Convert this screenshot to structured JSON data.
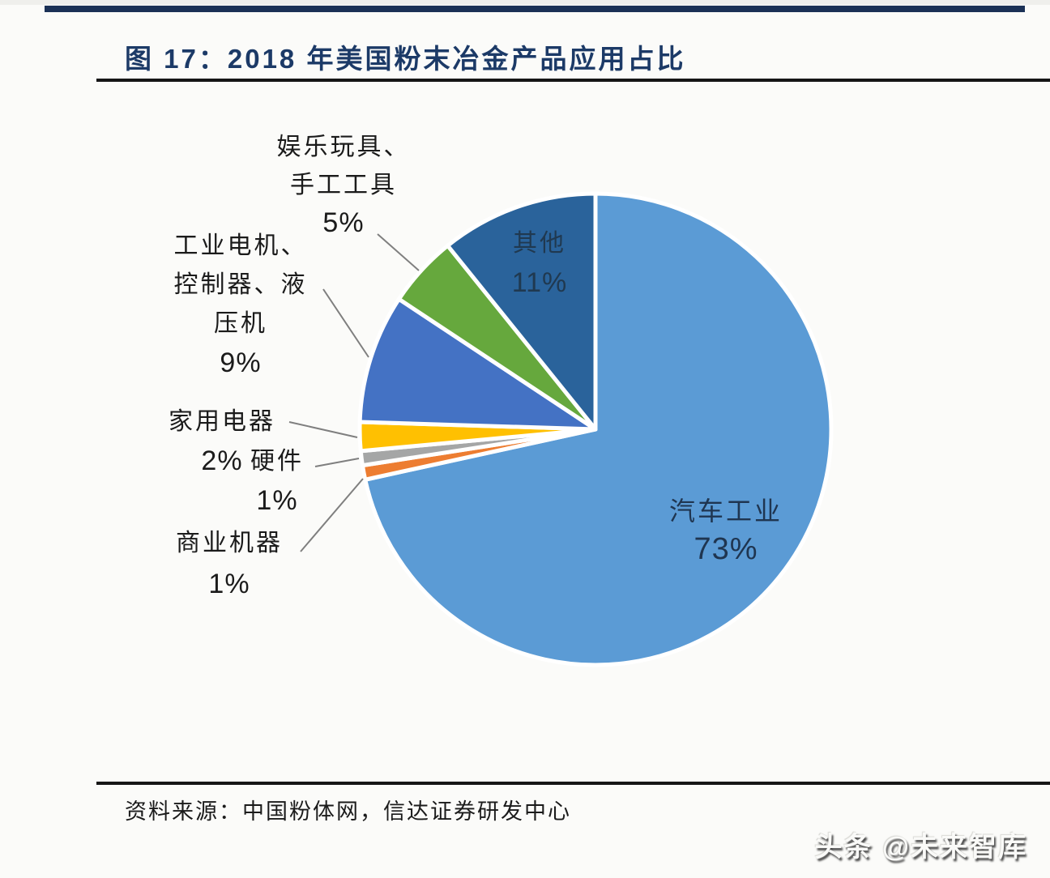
{
  "header": {
    "title": "图 17：2018 年美国粉末冶金产品应用占比"
  },
  "footer": {
    "source": "资料来源：中国粉体网，信达证券研发中心",
    "watermark": "头条 @未来智库"
  },
  "chart_data": {
    "type": "pie",
    "title": "2018 年美国粉末冶金产品应用占比",
    "start_angle_deg": 0,
    "direction": "clockwise",
    "legend": "none",
    "label_style": "outside leader-line labels for small slices; inside labels for 汽车工业 and 其他",
    "series": [
      {
        "slug": "auto-industry",
        "label": "汽车工业",
        "value": 73,
        "color": "#5B9BD5"
      },
      {
        "slug": "commercial-machines",
        "label": "商业机器",
        "value": 1,
        "color": "#ED7D31"
      },
      {
        "slug": "hardware",
        "label": "硬件",
        "value": 1,
        "color": "#A5A6A6"
      },
      {
        "slug": "home-appliances",
        "label": "家用电器",
        "value": 2,
        "color": "#FFC001"
      },
      {
        "slug": "industrial-motors",
        "label": "工业电机、控制器、液压机",
        "value": 9,
        "color": "#4472C4"
      },
      {
        "slug": "toys-tools",
        "label": "娱乐玩具、手工工具",
        "value": 5,
        "color": "#66A83D"
      },
      {
        "slug": "other",
        "label": "其他",
        "value": 11,
        "color": "#2A639B"
      }
    ]
  },
  "labels": {
    "toys": {
      "line1": "娱乐玩具、",
      "line2": "手工工具",
      "value": "5%"
    },
    "industrial": {
      "line1": "工业电机、",
      "line2": "控制器、液",
      "line3": "压机",
      "value": "9%"
    },
    "appliances": {
      "name": "家用电器",
      "value": "2%"
    },
    "hardware": {
      "name": "硬件",
      "value": "1%"
    },
    "commercial": {
      "name": "商业机器",
      "value": "1%"
    },
    "other": {
      "name": "其他",
      "value": "11%"
    },
    "auto": {
      "name": "汽车工业",
      "value": "73%"
    }
  }
}
